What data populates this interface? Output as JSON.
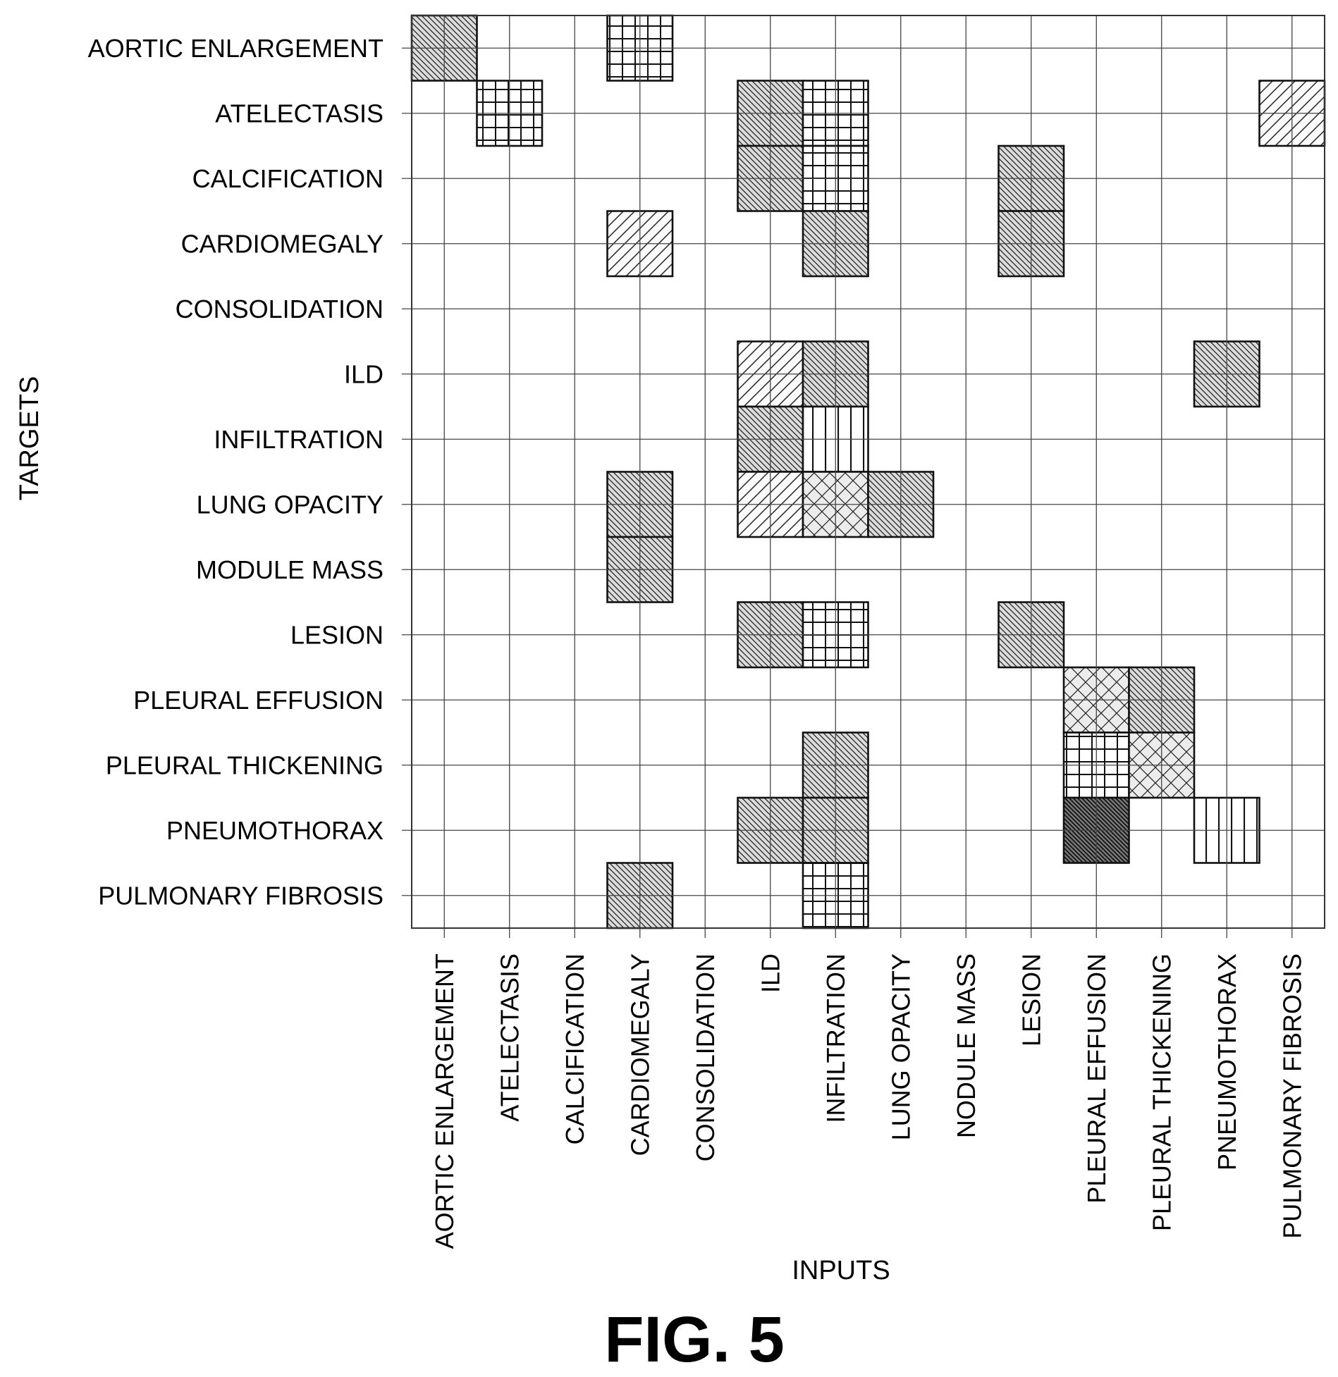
{
  "chart_data": {
    "type": "heatmap",
    "xlabel": "INPUTS",
    "ylabel": "TARGETS",
    "x_categories": [
      "AORTIC ENLARGEMENT",
      "ATELECTASIS",
      "CALCIFICATION",
      "CARDIOMEGALY",
      "CONSOLIDATION",
      "ILD",
      "INFILTRATION",
      "LUNG OPACITY",
      "NODULE MASS",
      "LESION",
      "PLEURAL EFFUSION",
      "PLEURAL THICKENING",
      "PNEUMOTHORAX",
      "PULMONARY FIBROSIS"
    ],
    "y_categories": [
      "AORTIC ENLARGEMENT",
      "ATELECTASIS",
      "CALCIFICATION",
      "CARDIOMEGALY",
      "CONSOLIDATION",
      "ILD",
      "INFILTRATION",
      "LUNG OPACITY",
      "MODULE MASS",
      "LESION",
      "PLEURAL EFFUSION",
      "PLEURAL THICKENING",
      "PNEUMOTHORAX",
      "PULMONARY FIBROSIS"
    ],
    "grid": true,
    "cells": [
      {
        "target": "AORTIC ENLARGEMENT",
        "input": "AORTIC ENLARGEMENT",
        "pattern": "diag-dense"
      },
      {
        "target": "AORTIC ENLARGEMENT",
        "input": "CARDIOMEGALY",
        "pattern": "grid"
      },
      {
        "target": "ATELECTASIS",
        "input": "ATELECTASIS",
        "pattern": "grid"
      },
      {
        "target": "ATELECTASIS",
        "input": "ILD",
        "pattern": "diag-dense"
      },
      {
        "target": "ATELECTASIS",
        "input": "INFILTRATION",
        "pattern": "grid"
      },
      {
        "target": "ATELECTASIS",
        "input": "PULMONARY FIBROSIS",
        "pattern": "diag-sparse"
      },
      {
        "target": "CALCIFICATION",
        "input": "ILD",
        "pattern": "diag-dense"
      },
      {
        "target": "CALCIFICATION",
        "input": "INFILTRATION",
        "pattern": "grid"
      },
      {
        "target": "CALCIFICATION",
        "input": "LESION",
        "pattern": "diag-dense"
      },
      {
        "target": "CARDIOMEGALY",
        "input": "CARDIOMEGALY",
        "pattern": "diag-sparse"
      },
      {
        "target": "CARDIOMEGALY",
        "input": "INFILTRATION",
        "pattern": "diag-dense"
      },
      {
        "target": "CARDIOMEGALY",
        "input": "LESION",
        "pattern": "diag-dense"
      },
      {
        "target": "ILD",
        "input": "ILD",
        "pattern": "diag-sparse"
      },
      {
        "target": "ILD",
        "input": "INFILTRATION",
        "pattern": "diag-dense"
      },
      {
        "target": "ILD",
        "input": "PNEUMOTHORAX",
        "pattern": "diag-dense"
      },
      {
        "target": "INFILTRATION",
        "input": "ILD",
        "pattern": "diag-dense"
      },
      {
        "target": "INFILTRATION",
        "input": "INFILTRATION",
        "pattern": "vertical"
      },
      {
        "target": "LUNG OPACITY",
        "input": "CARDIOMEGALY",
        "pattern": "diag-dense"
      },
      {
        "target": "LUNG OPACITY",
        "input": "ILD",
        "pattern": "diag-sparse"
      },
      {
        "target": "LUNG OPACITY",
        "input": "INFILTRATION",
        "pattern": "crosshatch"
      },
      {
        "target": "LUNG OPACITY",
        "input": "LUNG OPACITY",
        "pattern": "diag-dense"
      },
      {
        "target": "MODULE MASS",
        "input": "CARDIOMEGALY",
        "pattern": "diag-dense"
      },
      {
        "target": "LESION",
        "input": "ILD",
        "pattern": "diag-dense"
      },
      {
        "target": "LESION",
        "input": "INFILTRATION",
        "pattern": "grid"
      },
      {
        "target": "LESION",
        "input": "LESION",
        "pattern": "diag-dense"
      },
      {
        "target": "PLEURAL EFFUSION",
        "input": "PLEURAL EFFUSION",
        "pattern": "crosshatch"
      },
      {
        "target": "PLEURAL EFFUSION",
        "input": "PLEURAL THICKENING",
        "pattern": "diag-dense"
      },
      {
        "target": "PLEURAL THICKENING",
        "input": "INFILTRATION",
        "pattern": "diag-dense"
      },
      {
        "target": "PLEURAL THICKENING",
        "input": "PLEURAL EFFUSION",
        "pattern": "grid"
      },
      {
        "target": "PLEURAL THICKENING",
        "input": "PLEURAL THICKENING",
        "pattern": "crosshatch"
      },
      {
        "target": "PNEUMOTHORAX",
        "input": "ILD",
        "pattern": "diag-dense"
      },
      {
        "target": "PNEUMOTHORAX",
        "input": "INFILTRATION",
        "pattern": "diag-dense"
      },
      {
        "target": "PNEUMOTHORAX",
        "input": "PLEURAL EFFUSION",
        "pattern": "diag-dark"
      },
      {
        "target": "PNEUMOTHORAX",
        "input": "PNEUMOTHORAX",
        "pattern": "vertical"
      },
      {
        "target": "PULMONARY FIBROSIS",
        "input": "CARDIOMEGALY",
        "pattern": "diag-dense"
      },
      {
        "target": "PULMONARY FIBROSIS",
        "input": "INFILTRATION",
        "pattern": "grid"
      }
    ]
  },
  "caption": "FIG. 5"
}
